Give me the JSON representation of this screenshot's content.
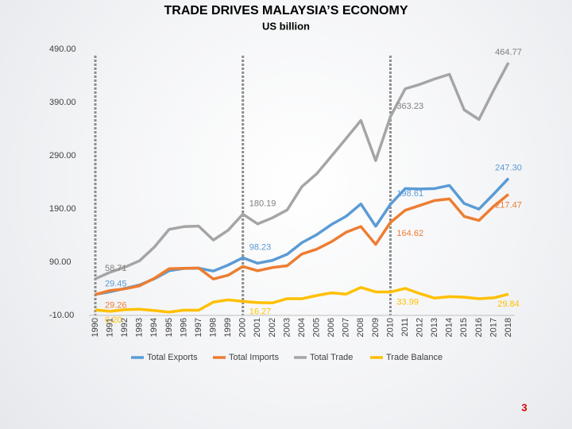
{
  "chart_data": {
    "type": "line",
    "title": "TRADE DRIVES MALAYSIA’S ECONOMY",
    "subtitle": "US billion",
    "categories": [
      "1990",
      "1991",
      "1992",
      "1993",
      "1994",
      "1995",
      "1996",
      "1997",
      "1998",
      "1999",
      "2000",
      "2001",
      "2002",
      "2003",
      "2004",
      "2005",
      "2006",
      "2007",
      "2008",
      "2009",
      "2010",
      "2011",
      "2012",
      "2013",
      "2014",
      "2015",
      "2016",
      "2017",
      "2018"
    ],
    "series": [
      {
        "name": "Total Exports",
        "color": "#5b9bd5",
        "values": [
          29.45,
          34.4,
          40.7,
          47.1,
          58.8,
          73.9,
          78.3,
          78.7,
          73.3,
          84.6,
          98.23,
          88.0,
          93.4,
          104.7,
          126.6,
          141.6,
          160.7,
          176.2,
          199.4,
          157.4,
          198.61,
          228.2,
          227.5,
          228.3,
          234.1,
          200.2,
          189.7,
          218.0,
          247.3
        ],
        "value_labels": [
          "29.45",
          null,
          null,
          null,
          null,
          null,
          null,
          null,
          null,
          null,
          "98.23",
          null,
          null,
          null,
          null,
          null,
          null,
          null,
          null,
          null,
          "198.61",
          null,
          null,
          null,
          null,
          null,
          null,
          null,
          "247.30"
        ]
      },
      {
        "name": "Total Imports",
        "color": "#ed7d31",
        "values": [
          29.26,
          36.7,
          39.9,
          45.6,
          59.6,
          77.7,
          78.4,
          79.0,
          58.3,
          65.4,
          81.96,
          73.9,
          79.9,
          83.3,
          105.3,
          114.3,
          128.3,
          146.2,
          156.9,
          123.3,
          164.62,
          187.5,
          196.6,
          205.9,
          208.9,
          176.0,
          168.4,
          195.0,
          217.47
        ],
        "value_labels": [
          "29.26",
          null,
          null,
          null,
          null,
          null,
          null,
          null,
          null,
          null,
          null,
          null,
          null,
          null,
          null,
          null,
          null,
          null,
          null,
          null,
          "164.62",
          null,
          null,
          null,
          null,
          null,
          null,
          null,
          "217.47"
        ]
      },
      {
        "name": "Total Trade",
        "color": "#a5a5a5",
        "values": [
          58.71,
          71.1,
          80.6,
          92.7,
          118.4,
          151.6,
          156.7,
          157.7,
          131.6,
          150.0,
          180.19,
          161.9,
          173.3,
          188.0,
          231.9,
          255.9,
          289.0,
          322.4,
          356.3,
          280.7,
          363.23,
          415.7,
          424.1,
          434.2,
          443.0,
          376.2,
          358.1,
          413.0,
          464.77
        ],
        "value_labels": [
          "58.71",
          null,
          null,
          null,
          null,
          null,
          null,
          null,
          null,
          null,
          "180.19",
          null,
          null,
          null,
          null,
          null,
          null,
          null,
          null,
          null,
          "363.23",
          null,
          null,
          null,
          null,
          null,
          null,
          null,
          "464.77"
        ]
      },
      {
        "name": "Trade Balance",
        "color": "#ffc000",
        "values": [
          0.2,
          -2.3,
          0.8,
          1.5,
          -0.8,
          -3.8,
          -0.1,
          -0.3,
          15.0,
          19.2,
          16.27,
          14.1,
          13.5,
          21.4,
          21.3,
          27.3,
          32.4,
          30.0,
          42.5,
          34.1,
          33.99,
          40.7,
          30.9,
          22.4,
          25.2,
          24.2,
          21.3,
          23.0,
          29.84
        ],
        "value_labels": [
          "0.20",
          null,
          null,
          null,
          null,
          null,
          null,
          null,
          null,
          null,
          "16.27",
          null,
          null,
          null,
          null,
          null,
          null,
          null,
          null,
          null,
          "33.99",
          null,
          null,
          null,
          null,
          null,
          null,
          null,
          "29.84"
        ]
      }
    ],
    "ylim": [
      -10,
      490
    ],
    "yticks": [
      {
        "value": -10,
        "label": "-10.00"
      },
      {
        "value": 90,
        "label": "90.00"
      },
      {
        "value": 190,
        "label": "190.00"
      },
      {
        "value": 290,
        "label": "290.00"
      },
      {
        "value": 390,
        "label": "390.00"
      },
      {
        "value": 490,
        "label": "490.00"
      }
    ],
    "grid": false,
    "legend": "bottom"
  },
  "page_number": "3"
}
